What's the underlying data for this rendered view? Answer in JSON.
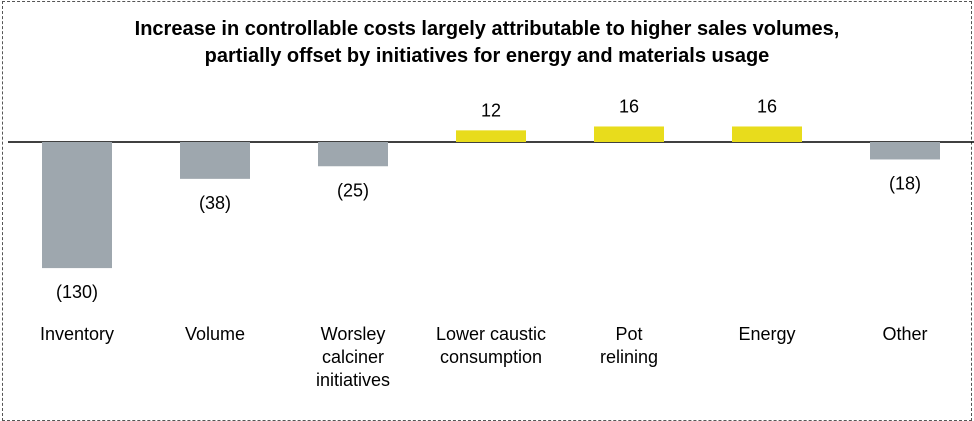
{
  "chart_data": {
    "type": "bar",
    "title_lines": [
      "Increase in controllable costs largely attributable to higher sales volumes,",
      "partially offset by initiatives for energy and materials usage"
    ],
    "categories": [
      [
        "Inventory"
      ],
      [
        "Volume"
      ],
      [
        "Worsley",
        "calciner",
        "initiatives"
      ],
      [
        "Lower caustic",
        "consumption"
      ],
      [
        "Pot",
        "relining"
      ],
      [
        "Energy"
      ],
      [
        "Other"
      ]
    ],
    "values": [
      -130,
      -38,
      -25,
      12,
      16,
      16,
      -18
    ],
    "value_labels": [
      "(130)",
      "(38)",
      "(25)",
      "12",
      "16",
      "16",
      "(18)"
    ],
    "colors": {
      "negative": "#9ea7ae",
      "positive": "#e8dc1c",
      "axis": "#000000"
    },
    "ylim": [
      -130,
      16
    ],
    "grid": false,
    "legend": "none"
  }
}
